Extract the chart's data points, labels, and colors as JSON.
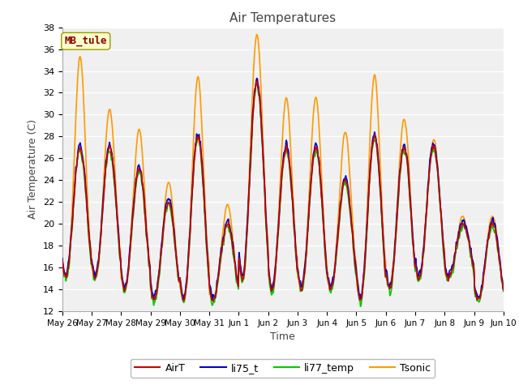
{
  "title": "Air Temperatures",
  "xlabel": "Time",
  "ylabel": "Air Temperature (C)",
  "ylim": [
    12,
    38
  ],
  "station_label": "MB_tule",
  "legend_entries": [
    "AirT",
    "li75_t",
    "li77_temp",
    "Tsonic"
  ],
  "line_colors": [
    "#cc0000",
    "#0000cc",
    "#00cc00",
    "#ff9900"
  ],
  "figure_bg": "#ffffff",
  "plot_bg": "#f0f0f0",
  "x_tick_labels": [
    "May 26",
    "May 27",
    "May 28",
    "May 29",
    "May 30",
    "May 31",
    "Jun 1",
    "Jun 2",
    "Jun 3",
    "Jun 4",
    "Jun 5",
    "Jun 6",
    "Jun 7",
    "Jun 8",
    "Jun 9",
    "Jun 10"
  ],
  "n_days": 15,
  "samples_per_day": 48,
  "daily_max_airt": [
    27,
    27,
    25,
    22,
    28,
    20,
    33,
    27,
    27,
    24,
    28,
    27,
    27,
    20,
    20
  ],
  "daily_min_airt": [
    15,
    15,
    14,
    13,
    13,
    13,
    15,
    14,
    14,
    14,
    13,
    14,
    15,
    15,
    13
  ],
  "tsonic_extra": [
    9,
    4,
    4,
    2,
    6,
    2,
    5,
    5,
    5,
    5,
    6,
    3,
    1,
    1,
    1
  ]
}
